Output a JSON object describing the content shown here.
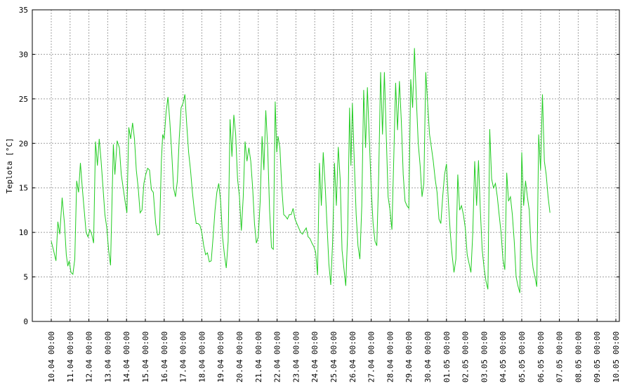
{
  "chart_data": {
    "type": "line",
    "title": "",
    "ylabel": "Teplota [°C]",
    "xlabel": "",
    "ylim": [
      0,
      35
    ],
    "yticks": [
      0,
      5,
      10,
      15,
      20,
      25,
      30,
      35
    ],
    "grid": true,
    "line_color": "#22cc22",
    "xtick_time_label": "00:00",
    "xticks": [
      "10.04",
      "11.04",
      "12.04",
      "13.04",
      "14.04",
      "15.04",
      "16.04",
      "17.04",
      "18.04",
      "19.04",
      "20.04",
      "21.04",
      "22.04",
      "23.04",
      "24.04",
      "25.04",
      "26.04",
      "27.04",
      "28.04",
      "29.04",
      "30.04",
      "01.05",
      "02.05",
      "03.05",
      "04.05",
      "05.05",
      "06.05",
      "07.05",
      "08.05",
      "09.05",
      "10.05"
    ],
    "xlim_days": [
      0,
      31.75
    ],
    "series": [
      {
        "name": "",
        "points": [
          [
            0.0,
            9.0
          ],
          [
            0.12,
            8.0
          ],
          [
            0.25,
            6.8
          ],
          [
            0.35,
            11.2
          ],
          [
            0.45,
            9.8
          ],
          [
            0.58,
            13.9
          ],
          [
            0.7,
            11.0
          ],
          [
            0.8,
            7.5
          ],
          [
            0.88,
            6.2
          ],
          [
            0.95,
            6.8
          ],
          [
            1.05,
            5.5
          ],
          [
            1.15,
            5.3
          ],
          [
            1.25,
            7.0
          ],
          [
            1.35,
            15.8
          ],
          [
            1.45,
            14.5
          ],
          [
            1.55,
            17.8
          ],
          [
            1.65,
            15.0
          ],
          [
            1.75,
            12.5
          ],
          [
            1.85,
            10.0
          ],
          [
            1.95,
            9.5
          ],
          [
            2.05,
            10.3
          ],
          [
            2.15,
            9.8
          ],
          [
            2.25,
            8.8
          ],
          [
            2.35,
            20.2
          ],
          [
            2.45,
            17.5
          ],
          [
            2.55,
            20.5
          ],
          [
            2.65,
            18.0
          ],
          [
            2.75,
            15.0
          ],
          [
            2.85,
            12.0
          ],
          [
            2.95,
            10.5
          ],
          [
            3.05,
            8.0
          ],
          [
            3.15,
            6.3
          ],
          [
            3.3,
            19.9
          ],
          [
            3.38,
            16.5
          ],
          [
            3.5,
            20.3
          ],
          [
            3.62,
            19.5
          ],
          [
            3.72,
            16.5
          ],
          [
            3.82,
            15.0
          ],
          [
            3.92,
            13.5
          ],
          [
            4.02,
            12.2
          ],
          [
            4.12,
            21.8
          ],
          [
            4.22,
            20.5
          ],
          [
            4.32,
            22.3
          ],
          [
            4.42,
            20.5
          ],
          [
            4.52,
            17.0
          ],
          [
            4.62,
            15.0
          ],
          [
            4.72,
            12.2
          ],
          [
            4.82,
            12.5
          ],
          [
            4.92,
            15.5
          ],
          [
            5.02,
            16.5
          ],
          [
            5.12,
            17.2
          ],
          [
            5.22,
            17.0
          ],
          [
            5.32,
            14.8
          ],
          [
            5.42,
            14.5
          ],
          [
            5.55,
            11.0
          ],
          [
            5.65,
            9.7
          ],
          [
            5.75,
            9.8
          ],
          [
            5.85,
            18.0
          ],
          [
            5.92,
            21.0
          ],
          [
            6.0,
            20.5
          ],
          [
            6.1,
            23.5
          ],
          [
            6.2,
            25.2
          ],
          [
            6.3,
            22.5
          ],
          [
            6.4,
            19.0
          ],
          [
            6.5,
            15.0
          ],
          [
            6.6,
            14.0
          ],
          [
            6.7,
            15.8
          ],
          [
            6.8,
            20.5
          ],
          [
            6.9,
            24.0
          ],
          [
            7.0,
            24.5
          ],
          [
            7.1,
            25.5
          ],
          [
            7.2,
            22.0
          ],
          [
            7.3,
            19.0
          ],
          [
            7.4,
            17.0
          ],
          [
            7.5,
            14.5
          ],
          [
            7.6,
            12.5
          ],
          [
            7.7,
            11.0
          ],
          [
            7.8,
            11.0
          ],
          [
            7.9,
            10.8
          ],
          [
            8.0,
            10.0
          ],
          [
            8.1,
            8.5
          ],
          [
            8.2,
            7.5
          ],
          [
            8.3,
            7.7
          ],
          [
            8.4,
            6.7
          ],
          [
            8.5,
            6.8
          ],
          [
            8.6,
            9.5
          ],
          [
            8.7,
            12.5
          ],
          [
            8.8,
            14.5
          ],
          [
            8.9,
            15.5
          ],
          [
            9.0,
            13.5
          ],
          [
            9.1,
            9.5
          ],
          [
            9.2,
            7.5
          ],
          [
            9.3,
            6.0
          ],
          [
            9.4,
            9.0
          ],
          [
            9.5,
            22.7
          ],
          [
            9.6,
            18.5
          ],
          [
            9.7,
            23.2
          ],
          [
            9.8,
            21.0
          ],
          [
            9.9,
            16.0
          ],
          [
            10.0,
            14.0
          ],
          [
            10.1,
            10.2
          ],
          [
            10.2,
            14.0
          ],
          [
            10.3,
            20.2
          ],
          [
            10.4,
            18.0
          ],
          [
            10.5,
            19.5
          ],
          [
            10.6,
            18.0
          ],
          [
            10.7,
            15.0
          ],
          [
            10.8,
            11.0
          ],
          [
            10.9,
            8.8
          ],
          [
            11.0,
            9.5
          ],
          [
            11.1,
            13.5
          ],
          [
            11.2,
            20.8
          ],
          [
            11.3,
            17.0
          ],
          [
            11.4,
            23.7
          ],
          [
            11.5,
            19.5
          ],
          [
            11.6,
            12.5
          ],
          [
            11.7,
            8.3
          ],
          [
            11.8,
            8.1
          ],
          [
            11.9,
            24.7
          ],
          [
            11.98,
            19.0
          ],
          [
            12.05,
            20.8
          ],
          [
            12.15,
            19.5
          ],
          [
            12.25,
            15.0
          ],
          [
            12.35,
            12.0
          ],
          [
            12.45,
            11.8
          ],
          [
            12.55,
            11.5
          ],
          [
            12.65,
            12.0
          ],
          [
            12.75,
            12.0
          ],
          [
            12.85,
            12.7
          ],
          [
            12.95,
            11.5
          ],
          [
            13.05,
            11.0
          ],
          [
            13.15,
            10.5
          ],
          [
            13.25,
            10.0
          ],
          [
            13.35,
            9.8
          ],
          [
            13.45,
            10.2
          ],
          [
            13.55,
            10.5
          ],
          [
            13.65,
            9.5
          ],
          [
            13.75,
            9.3
          ],
          [
            13.85,
            8.8
          ],
          [
            13.95,
            8.4
          ],
          [
            14.05,
            7.8
          ],
          [
            14.15,
            5.2
          ],
          [
            14.25,
            17.8
          ],
          [
            14.35,
            13.0
          ],
          [
            14.45,
            19.0
          ],
          [
            14.55,
            15.5
          ],
          [
            14.65,
            11.0
          ],
          [
            14.75,
            6.5
          ],
          [
            14.85,
            4.1
          ],
          [
            14.95,
            9.0
          ],
          [
            15.05,
            17.8
          ],
          [
            15.15,
            13.0
          ],
          [
            15.25,
            19.6
          ],
          [
            15.35,
            16.0
          ],
          [
            15.45,
            8.0
          ],
          [
            15.55,
            6.0
          ],
          [
            15.65,
            4.0
          ],
          [
            15.75,
            10.0
          ],
          [
            15.85,
            24.0
          ],
          [
            15.92,
            17.5
          ],
          [
            16.0,
            24.5
          ],
          [
            16.1,
            18.0
          ],
          [
            16.2,
            12.0
          ],
          [
            16.3,
            8.5
          ],
          [
            16.4,
            7.0
          ],
          [
            16.5,
            13.0
          ],
          [
            16.6,
            26.0
          ],
          [
            16.7,
            19.5
          ],
          [
            16.8,
            26.3
          ],
          [
            16.9,
            20.5
          ],
          [
            17.0,
            15.0
          ],
          [
            17.1,
            11.0
          ],
          [
            17.2,
            9.0
          ],
          [
            17.3,
            8.5
          ],
          [
            17.4,
            16.5
          ],
          [
            17.5,
            28.0
          ],
          [
            17.6,
            21.0
          ],
          [
            17.7,
            28.0
          ],
          [
            17.8,
            21.0
          ],
          [
            17.9,
            14.0
          ],
          [
            18.0,
            12.5
          ],
          [
            18.1,
            10.3
          ],
          [
            18.2,
            18.5
          ],
          [
            18.3,
            26.8
          ],
          [
            18.4,
            21.5
          ],
          [
            18.5,
            27.0
          ],
          [
            18.6,
            22.5
          ],
          [
            18.7,
            16.5
          ],
          [
            18.8,
            13.5
          ],
          [
            18.9,
            13.0
          ],
          [
            19.0,
            12.7
          ],
          [
            19.1,
            27.2
          ],
          [
            19.2,
            24.0
          ],
          [
            19.3,
            30.7
          ],
          [
            19.4,
            25.0
          ],
          [
            19.5,
            20.0
          ],
          [
            19.6,
            17.5
          ],
          [
            19.7,
            14.0
          ],
          [
            19.8,
            15.5
          ],
          [
            19.9,
            28.0
          ],
          [
            20.0,
            24.5
          ],
          [
            20.1,
            21.0
          ],
          [
            20.2,
            19.5
          ],
          [
            20.3,
            18.0
          ],
          [
            20.4,
            16.0
          ],
          [
            20.5,
            14.5
          ],
          [
            20.6,
            11.5
          ],
          [
            20.7,
            11.0
          ],
          [
            20.8,
            14.0
          ],
          [
            20.9,
            16.5
          ],
          [
            21.0,
            17.7
          ],
          [
            21.1,
            13.5
          ],
          [
            21.2,
            10.0
          ],
          [
            21.3,
            7.5
          ],
          [
            21.4,
            5.5
          ],
          [
            21.5,
            7.0
          ],
          [
            21.6,
            16.5
          ],
          [
            21.7,
            12.5
          ],
          [
            21.8,
            13.0
          ],
          [
            21.9,
            12.0
          ],
          [
            22.0,
            10.5
          ],
          [
            22.1,
            7.5
          ],
          [
            22.2,
            6.5
          ],
          [
            22.3,
            5.5
          ],
          [
            22.4,
            10.0
          ],
          [
            22.5,
            18.0
          ],
          [
            22.6,
            13.0
          ],
          [
            22.7,
            18.1
          ],
          [
            22.8,
            12.5
          ],
          [
            22.9,
            8.0
          ],
          [
            23.0,
            6.0
          ],
          [
            23.1,
            4.5
          ],
          [
            23.2,
            3.6
          ],
          [
            23.3,
            21.6
          ],
          [
            23.4,
            16.0
          ],
          [
            23.5,
            15.0
          ],
          [
            23.6,
            15.5
          ],
          [
            23.7,
            14.0
          ],
          [
            23.8,
            12.0
          ],
          [
            23.9,
            10.0
          ],
          [
            24.0,
            7.0
          ],
          [
            24.1,
            5.8
          ],
          [
            24.2,
            16.7
          ],
          [
            24.3,
            13.5
          ],
          [
            24.4,
            14.0
          ],
          [
            24.5,
            12.0
          ],
          [
            24.6,
            9.0
          ],
          [
            24.7,
            5.0
          ],
          [
            24.8,
            4.0
          ],
          [
            24.9,
            3.2
          ],
          [
            25.0,
            19.0
          ],
          [
            25.1,
            13.0
          ],
          [
            25.2,
            15.8
          ],
          [
            25.3,
            14.0
          ],
          [
            25.4,
            12.5
          ],
          [
            25.5,
            8.0
          ],
          [
            25.6,
            6.0
          ],
          [
            25.7,
            5.0
          ],
          [
            25.8,
            3.9
          ],
          [
            25.9,
            21.0
          ],
          [
            26.0,
            17.0
          ],
          [
            26.1,
            25.5
          ],
          [
            26.2,
            18.0
          ],
          [
            26.3,
            16.5
          ],
          [
            26.4,
            14.0
          ],
          [
            26.5,
            12.2
          ]
        ]
      }
    ]
  }
}
